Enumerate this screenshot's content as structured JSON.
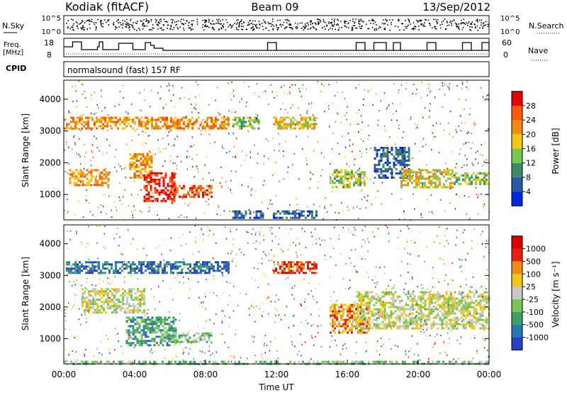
{
  "header": {
    "station": "Kodiak (fitACF)",
    "beam": "Beam 09",
    "date": "13/Sep/2012"
  },
  "panels": {
    "noise": {
      "left_label": "N.Sky",
      "right_label": "N.Search",
      "left_ticks": [
        "10^5",
        "10^0"
      ],
      "right_ticks": [
        "10^5",
        "10^0"
      ]
    },
    "freq": {
      "left_label_1": "Freq.",
      "left_label_2": "[MHz]",
      "right_label": "Nave",
      "left_ticks": [
        "18",
        "8"
      ],
      "right_ticks": [
        "60",
        "0"
      ]
    },
    "cpid": {
      "label": "CPID",
      "text": "normalsound (fast) 157 RF"
    }
  },
  "chart_data": [
    {
      "type": "heatmap",
      "name": "power",
      "ylabel": "Slant Range [km]",
      "yticks": [
        "1000",
        "2000",
        "3000",
        "4000"
      ],
      "ylim": [
        200,
        4600
      ],
      "colorbar_label": "Power [dB]",
      "colorbar_ticks": [
        "4",
        "8",
        "12",
        "16",
        "20",
        "24",
        "28"
      ],
      "colors": [
        "#0028dc",
        "#285aa8",
        "#3c8c64",
        "#78c850",
        "#f0c814",
        "#f08c14",
        "#ff5a0a",
        "#e60000"
      ],
      "regions": [
        {
          "t0": 0.0,
          "t1": 9.3,
          "r0": 3100,
          "r1": 3450,
          "level": 5
        },
        {
          "t0": 0.3,
          "t1": 2.5,
          "r0": 1300,
          "r1": 1800,
          "level": 5
        },
        {
          "t0": 3.7,
          "t1": 5.0,
          "r0": 1500,
          "r1": 2300,
          "level": 5
        },
        {
          "t0": 4.5,
          "t1": 6.3,
          "r0": 800,
          "r1": 1700,
          "level": 7
        },
        {
          "t0": 6.0,
          "t1": 8.3,
          "r0": 900,
          "r1": 1300,
          "level": 6
        },
        {
          "t0": 9.5,
          "t1": 11.0,
          "r0": 3100,
          "r1": 3450,
          "level": 3
        },
        {
          "t0": 11.8,
          "t1": 14.3,
          "r0": 3100,
          "r1": 3450,
          "level": 4
        },
        {
          "t0": 9.5,
          "t1": 11.2,
          "r0": 250,
          "r1": 500,
          "level": 1
        },
        {
          "t0": 11.8,
          "t1": 14.3,
          "r0": 250,
          "r1": 500,
          "level": 1
        },
        {
          "t0": 15.0,
          "t1": 17.0,
          "r0": 1200,
          "r1": 1800,
          "level": 3
        },
        {
          "t0": 17.5,
          "t1": 19.5,
          "r0": 1500,
          "r1": 2500,
          "level": 1
        },
        {
          "t0": 19.0,
          "t1": 22.0,
          "r0": 1200,
          "r1": 1800,
          "level": 4
        },
        {
          "t0": 22.0,
          "t1": 24.0,
          "r0": 1300,
          "r1": 1700,
          "level": 3
        }
      ]
    },
    {
      "type": "heatmap",
      "name": "velocity",
      "ylabel": "Slant Range [km]",
      "yticks": [
        "1000",
        "2000",
        "3000",
        "4000"
      ],
      "ylim": [
        200,
        4600
      ],
      "colorbar_label": "Velocity [m s⁻¹]",
      "colorbar_ticks": [
        "1000",
        "500",
        "100",
        "25",
        "-25",
        "-100",
        "-500",
        "-1000"
      ],
      "colors": [
        "#2840c8",
        "#2878b4",
        "#3ca064",
        "#78c850",
        "#c8c8c8",
        "#f0c814",
        "#f08c14",
        "#e61e0a",
        "#dc0000"
      ],
      "regions": [
        {
          "t0": 0.0,
          "t1": 9.3,
          "r0": 3100,
          "r1": 3450,
          "level": 1
        },
        {
          "t0": 3.5,
          "t1": 6.3,
          "r0": 800,
          "r1": 1700,
          "level": 2
        },
        {
          "t0": 5.5,
          "t1": 8.3,
          "r0": 900,
          "r1": 1200,
          "level": 3
        },
        {
          "t0": 0.0,
          "t1": 24.0,
          "r0": 220,
          "r1": 300,
          "level": 3
        },
        {
          "t0": 15.0,
          "t1": 17.2,
          "r0": 1200,
          "r1": 2100,
          "level": 6
        },
        {
          "t0": 16.5,
          "t1": 24.0,
          "r0": 1300,
          "r1": 2500,
          "level": 4
        },
        {
          "t0": 11.8,
          "t1": 14.3,
          "r0": 3100,
          "r1": 3450,
          "level": 7
        },
        {
          "t0": 1.0,
          "t1": 4.5,
          "r0": 1800,
          "r1": 2600,
          "level": 4
        }
      ]
    }
  ],
  "time_axis": {
    "label": "Time UT",
    "ticks": [
      "00:00",
      "04:00",
      "08:00",
      "12:00",
      "16:00",
      "20:00",
      "00:00"
    ]
  }
}
